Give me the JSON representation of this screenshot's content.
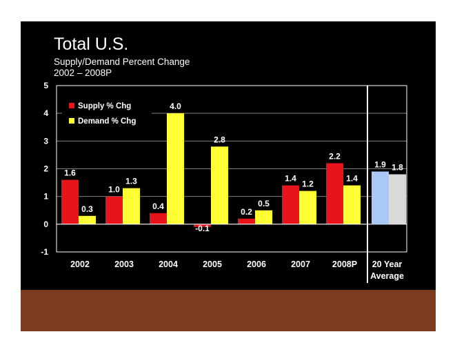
{
  "slide": {
    "title": "Total U.S.",
    "subtitle_line1": "Supply/Demand Percent Change",
    "subtitle_line2": "2002 – 2008P"
  },
  "chart_data": {
    "type": "bar",
    "categories": [
      "2002",
      "2003",
      "2004",
      "2005",
      "2006",
      "2007",
      "2008P"
    ],
    "series": [
      {
        "name": "Supply % Chg",
        "values": [
          1.6,
          1.0,
          0.4,
          -0.1,
          0.2,
          1.4,
          2.2
        ],
        "labels": [
          "1.6",
          "1.0",
          "0.4",
          "-0.1",
          "0.2",
          "1.4",
          "2.2"
        ],
        "color": "#e8141b"
      },
      {
        "name": "Demand % Chg",
        "values": [
          0.3,
          1.3,
          4.0,
          2.8,
          0.5,
          1.2,
          1.4
        ],
        "labels": [
          "0.3",
          "1.3",
          "4.0",
          "2.8",
          "0.5",
          "1.2",
          "1.4"
        ],
        "color": "#ffff33"
      }
    ],
    "average": {
      "category_line1": "20 Year",
      "category_line2": "Average",
      "values": [
        1.9,
        1.8
      ],
      "labels": [
        "1.9",
        "1.8"
      ],
      "colors": [
        "#a9c8f5",
        "#d9d9d9"
      ]
    },
    "yticks": [
      -1,
      0,
      1,
      2,
      3,
      4,
      5
    ],
    "ylim": [
      -1,
      5
    ],
    "grid": true,
    "legend_position": "top-left"
  }
}
